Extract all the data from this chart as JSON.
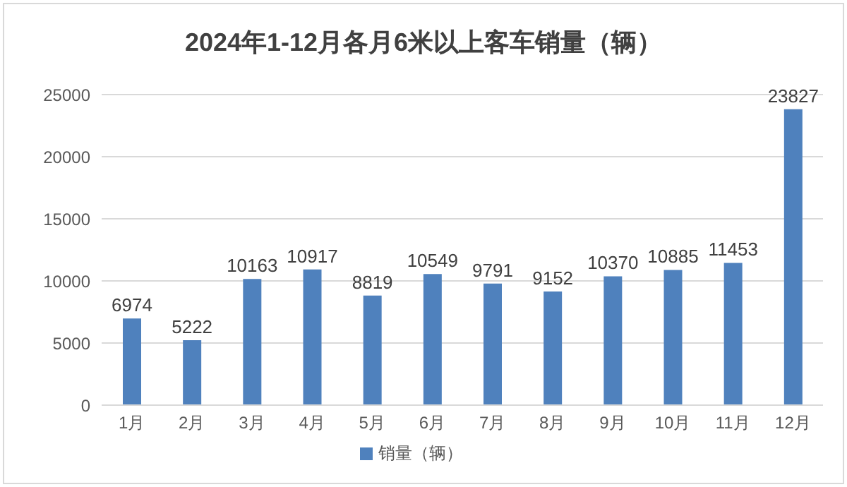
{
  "chart_data": {
    "type": "bar",
    "title": "2024年1-12月各月6米以上客车销量（辆）",
    "categories": [
      "1月",
      "2月",
      "3月",
      "4月",
      "5月",
      "6月",
      "7月",
      "8月",
      "9月",
      "10月",
      "11月",
      "12月"
    ],
    "series": [
      {
        "name": "销量（辆）",
        "color": "#4f81bd",
        "values": [
          6974,
          5222,
          10163,
          10917,
          8819,
          10549,
          9791,
          9152,
          10370,
          10885,
          11453,
          23827
        ]
      }
    ],
    "ylim": [
      0,
      25000
    ],
    "yticks": [
      0,
      5000,
      10000,
      15000,
      20000,
      25000
    ],
    "grid": "y",
    "legend": "bottom",
    "data_labels": true
  }
}
